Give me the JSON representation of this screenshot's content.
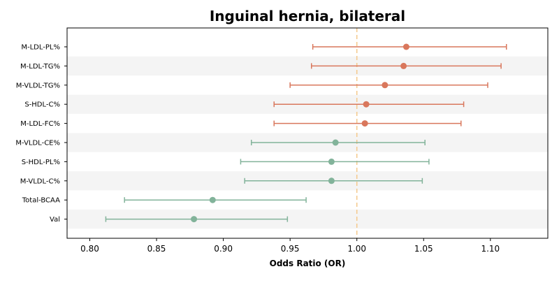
{
  "chart_data": {
    "type": "forest",
    "title": "Inguinal hernia, bilateral",
    "xlabel": "Odds Ratio (OR)",
    "ylabel": "",
    "xlim": [
      0.783,
      1.143
    ],
    "x_ticks": [
      "0.80",
      "0.85",
      "0.90",
      "0.95",
      "1.00",
      "1.05",
      "1.10"
    ],
    "reference_line": 1.0,
    "grid": false,
    "row_banding": true,
    "colors": {
      "positive": "#d9775c",
      "negative": "#82b39a",
      "reference": "#f5c98c",
      "band": "#f4f4f4"
    },
    "rows": [
      {
        "label": "M-LDL-PL%",
        "or": 1.037,
        "ci_low": 0.967,
        "ci_high": 1.112
      },
      {
        "label": "M-LDL-TG%",
        "or": 1.035,
        "ci_low": 0.966,
        "ci_high": 1.108
      },
      {
        "label": "M-VLDL-TG%",
        "or": 1.021,
        "ci_low": 0.95,
        "ci_high": 1.098
      },
      {
        "label": "S-HDL-C%",
        "or": 1.007,
        "ci_low": 0.938,
        "ci_high": 1.08
      },
      {
        "label": "M-LDL-FC%",
        "or": 1.006,
        "ci_low": 0.938,
        "ci_high": 1.078
      },
      {
        "label": "M-VLDL-CE%",
        "or": 0.984,
        "ci_low": 0.921,
        "ci_high": 1.051
      },
      {
        "label": "S-HDL-PL%",
        "or": 0.981,
        "ci_low": 0.913,
        "ci_high": 1.054
      },
      {
        "label": "M-VLDL-C%",
        "or": 0.981,
        "ci_low": 0.916,
        "ci_high": 1.049
      },
      {
        "label": "Total-BCAA",
        "or": 0.892,
        "ci_low": 0.826,
        "ci_high": 0.962
      },
      {
        "label": "Val",
        "or": 0.878,
        "ci_low": 0.812,
        "ci_high": 0.948
      }
    ]
  }
}
